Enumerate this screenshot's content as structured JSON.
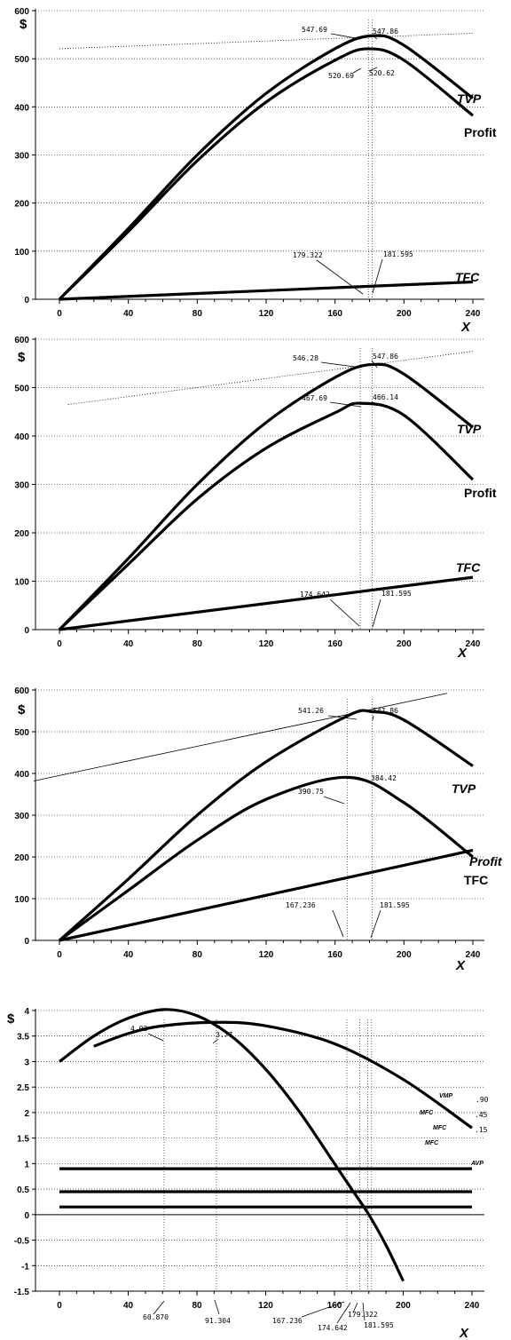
{
  "chart_data": [
    {
      "type": "line",
      "ylabel": "$",
      "xlabel": "X",
      "xlim": [
        0,
        240
      ],
      "ylim": [
        0,
        600
      ],
      "xticks": [
        0,
        40,
        80,
        120,
        160,
        200,
        240
      ],
      "yticks": [
        0,
        100,
        200,
        300,
        400,
        500,
        600
      ],
      "grid": "horizontal dotted",
      "series": [
        {
          "name": "TVP",
          "x": [
            0,
            40,
            80,
            120,
            160,
            181.595,
            200,
            240
          ],
          "y": [
            0,
            147,
            300,
            428,
            521,
            547.86,
            528,
            418
          ],
          "weight": "bold"
        },
        {
          "name": "Profit",
          "x": [
            0,
            40,
            80,
            120,
            160,
            179.322,
            200,
            240
          ],
          "y": [
            0,
            141,
            288,
            410,
            497,
            520.69,
            497,
            382
          ],
          "weight": "bold"
        },
        {
          "name": "TFC",
          "x": [
            0,
            240
          ],
          "y": [
            0,
            36
          ],
          "weight": "bold"
        },
        {
          "x": [
            0,
            240
          ],
          "y": [
            520.75,
            553
          ],
          "weight": "dotted"
        }
      ],
      "annotations": [
        {
          "text": "547.69",
          "x": 179.322,
          "y": 547.69
        },
        {
          "text": "547.86",
          "x": 181.595,
          "y": 547.86
        },
        {
          "text": "520.69",
          "x": 179.322,
          "y": 520.69
        },
        {
          "text": "520.62",
          "x": 181.595,
          "y": 520.62
        },
        {
          "text": "179.322",
          "x": 179.322,
          "y": 0
        },
        {
          "text": "181.595",
          "x": 181.595,
          "y": 0
        }
      ]
    },
    {
      "type": "line",
      "ylabel": "$",
      "xlabel": "X",
      "xlim": [
        0,
        240
      ],
      "ylim": [
        0,
        600
      ],
      "xticks": [
        0,
        40,
        80,
        120,
        160,
        200,
        240
      ],
      "yticks": [
        0,
        100,
        200,
        300,
        400,
        500,
        600
      ],
      "grid": "horizontal dotted",
      "series": [
        {
          "name": "TVP",
          "x": [
            0,
            40,
            80,
            120,
            160,
            181.595,
            200,
            240
          ],
          "y": [
            0,
            147,
            300,
            428,
            521,
            547.86,
            528,
            418
          ],
          "weight": "bold"
        },
        {
          "name": "Profit",
          "x": [
            0,
            40,
            80,
            120,
            160,
            174.642,
            200,
            240
          ],
          "y": [
            0,
            135,
            270,
            375,
            448,
            467.69,
            443,
            310
          ],
          "weight": "bold"
        },
        {
          "name": "TFC",
          "x": [
            0,
            240
          ],
          "y": [
            0,
            108
          ],
          "weight": "bold"
        },
        {
          "x": [
            5,
            240
          ],
          "y": [
            465,
            575
          ],
          "weight": "dotted"
        }
      ],
      "annotations": [
        {
          "text": "546.28",
          "x": 174.642,
          "y": 546.28
        },
        {
          "text": "547.86",
          "x": 181.595,
          "y": 547.86
        },
        {
          "text": "467.69",
          "x": 174.642,
          "y": 467.69
        },
        {
          "text": "466.14",
          "x": 181.595,
          "y": 466.14
        },
        {
          "text": "174.642",
          "x": 174.642,
          "y": 0
        },
        {
          "text": "181.595",
          "x": 181.595,
          "y": 0
        }
      ]
    },
    {
      "type": "line",
      "ylabel": "$",
      "xlabel": "X",
      "xlim": [
        0,
        240
      ],
      "ylim": [
        0,
        600
      ],
      "xticks": [
        0,
        40,
        80,
        120,
        160,
        200,
        240
      ],
      "yticks": [
        0,
        100,
        200,
        300,
        400,
        500,
        600
      ],
      "grid": "horizontal dotted",
      "series": [
        {
          "name": "TVP",
          "x": [
            0,
            40,
            80,
            120,
            167.236,
            181.595,
            200,
            240
          ],
          "y": [
            0,
            147,
            300,
            428,
            538,
            547.86,
            528,
            418
          ],
          "weight": "bold"
        },
        {
          "name": "Profit",
          "x": [
            0,
            40,
            80,
            120,
            167.236,
            200,
            240
          ],
          "y": [
            0,
            120,
            240,
            338,
            390.75,
            330,
            200
          ],
          "weight": "bold"
        },
        {
          "name": "TFC",
          "x": [
            0,
            240
          ],
          "y": [
            0,
            216
          ],
          "weight": "bold"
        },
        {
          "x": [
            -15,
            225
          ],
          "y": [
            382,
            592
          ],
          "weight": "thin"
        }
      ],
      "annotations": [
        {
          "text": "541.26",
          "x": 167.236,
          "y": 541.26
        },
        {
          "text": "547.86",
          "x": 181.595,
          "y": 547.86
        },
        {
          "text": "390.75",
          "x": 167.236,
          "y": 390.75
        },
        {
          "text": "384.42",
          "x": 181.595,
          "y": 384.42
        },
        {
          "text": "167.236",
          "x": 167.236,
          "y": 0
        },
        {
          "text": "181.595",
          "x": 181.595,
          "y": 0
        }
      ]
    },
    {
      "type": "line",
      "ylabel": "$",
      "xlabel": "X",
      "xlim": [
        0,
        240
      ],
      "ylim": [
        -1.5,
        4
      ],
      "xticks": [
        0,
        40,
        80,
        120,
        160,
        200,
        240
      ],
      "yticks": [
        -1.5,
        -1,
        -0.5,
        0,
        0.5,
        1,
        1.5,
        2,
        2.5,
        3,
        3.5,
        4
      ],
      "grid": "horizontal dotted",
      "series": [
        {
          "name": "VMP",
          "x": [
            0,
            20,
            40,
            60.87,
            80,
            100,
            120,
            140,
            160,
            170,
            180,
            190,
            200
          ],
          "y": [
            3,
            3.5,
            3.85,
            4.02,
            3.9,
            3.5,
            2.85,
            2.0,
            1.0,
            0.5,
            0.0,
            -0.6,
            -1.3
          ],
          "weight": "bold"
        },
        {
          "name": "AVP",
          "x": [
            20,
            40,
            60,
            91.304,
            120,
            160,
            200,
            240
          ],
          "y": [
            3.3,
            3.55,
            3.7,
            3.77,
            3.7,
            3.35,
            2.65,
            1.7
          ],
          "weight": "bold"
        },
        {
          "name": "MFC",
          "x": [
            0,
            240
          ],
          "y": [
            0.9,
            0.9
          ],
          "weight": "bold"
        },
        {
          "name": "MFC",
          "x": [
            0,
            240
          ],
          "y": [
            0.45,
            0.45
          ],
          "weight": "bold"
        },
        {
          "name": "MFC",
          "x": [
            0,
            240
          ],
          "y": [
            0.15,
            0.15
          ],
          "weight": "bold"
        }
      ],
      "annotations": [
        {
          "text": "4.02",
          "x": 60.87,
          "y": 4.02
        },
        {
          "text": "3.77",
          "x": 91.304,
          "y": 3.77
        },
        {
          "text": ".90",
          "x": 240,
          "y": 0.9
        },
        {
          "text": ".45",
          "x": 240,
          "y": 0.45
        },
        {
          "text": ".15",
          "x": 240,
          "y": 0.15
        },
        {
          "text": "60.870",
          "x": 60.87,
          "y": -1.5
        },
        {
          "text": "91.304",
          "x": 91.304,
          "y": -1.5
        },
        {
          "text": "167.236",
          "x": 167.236,
          "y": -1.5
        },
        {
          "text": "174.642",
          "x": 174.642,
          "y": -1.5
        },
        {
          "text": "179.322",
          "x": 179.322,
          "y": -1.5
        },
        {
          "text": "181.595",
          "x": 181.595,
          "y": -1.5
        }
      ]
    }
  ]
}
